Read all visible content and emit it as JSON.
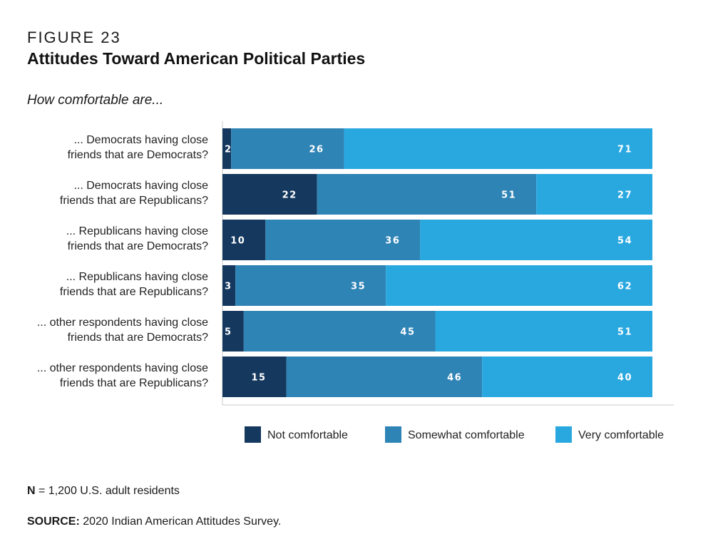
{
  "figure": {
    "label": "FIGURE 23",
    "title": "Attitudes Toward American Political Parties"
  },
  "chart_data": {
    "type": "bar",
    "orientation": "horizontal",
    "stacked": true,
    "title": "Attitudes Toward American Political Parties",
    "subtitle": "How comfortable are...",
    "categories": [
      [
        "... Democrats having close",
        "friends that are Democrats?"
      ],
      [
        "... Democrats having close",
        "friends that are Republicans?"
      ],
      [
        "... Republicans having close",
        "friends that are Democrats?"
      ],
      [
        "... Republicans having close",
        "friends that are Republicans?"
      ],
      [
        "... other respondents having close",
        "friends that are Democrats?"
      ],
      [
        "... other respondents having close",
        "friends that are Republicans?"
      ]
    ],
    "series": [
      {
        "name": "Not comfortable",
        "color": "#14385e",
        "values": [
          2,
          22,
          10,
          3,
          5,
          15
        ]
      },
      {
        "name": "Somewhat comfortable",
        "color": "#2f84b6",
        "values": [
          26,
          51,
          36,
          35,
          45,
          46
        ]
      },
      {
        "name": "Very comfortable",
        "color": "#29a8e0",
        "values": [
          71,
          27,
          54,
          62,
          51,
          40
        ]
      }
    ],
    "legend_position": "bottom",
    "grid": false
  },
  "footer": {
    "n_label": "N",
    "n_text": " = 1,200 U.S. adult residents",
    "source_label": "SOURCE:",
    "source_text": " 2020 Indian American Attitudes Survey."
  }
}
